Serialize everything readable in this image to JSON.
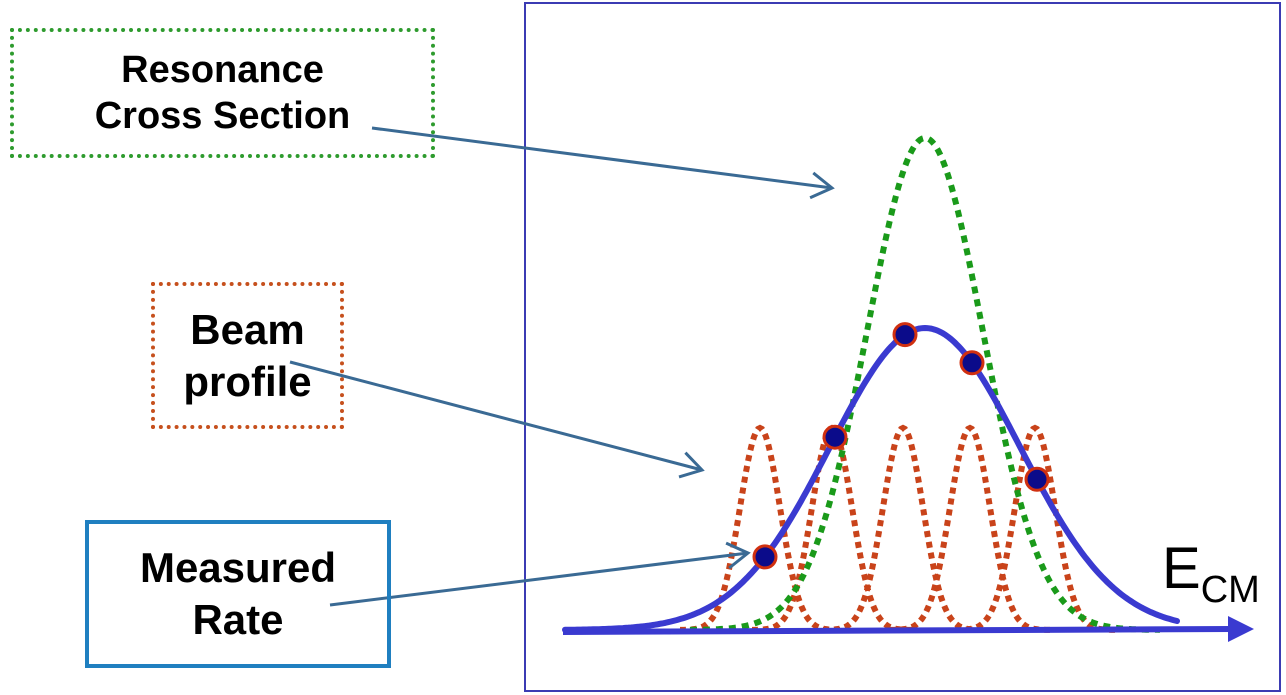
{
  "labels": {
    "resonance": [
      "Resonance",
      "Cross Section"
    ],
    "beam": [
      "Beam",
      "profile"
    ],
    "rate": [
      "Measured",
      "Rate"
    ]
  },
  "axis": {
    "label_main": "E",
    "label_sub": "CM"
  },
  "colors": {
    "resonance": "#1a9a1a",
    "beam": "#c9431a",
    "rate": "#3a3ad0",
    "pointer": "#3a6a94",
    "frame": "#3b3bb3",
    "point_fill": "#0b0b8a",
    "point_edge": "#d03010"
  }
}
